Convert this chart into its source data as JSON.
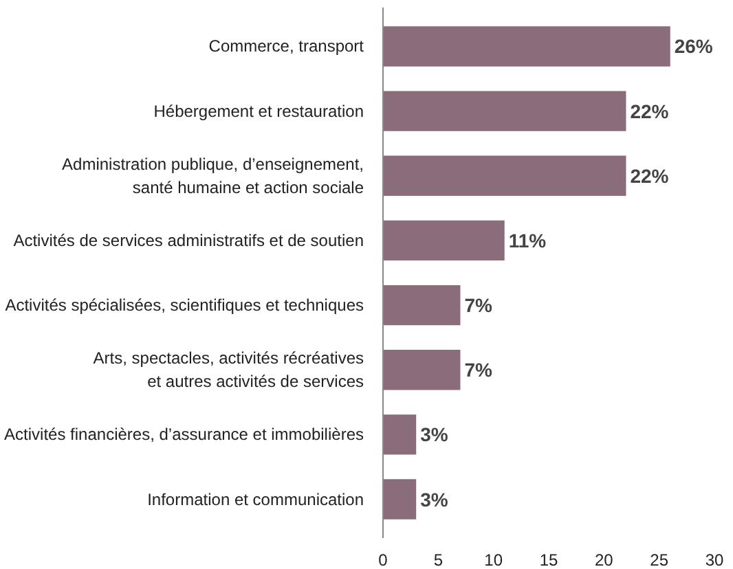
{
  "chart_data": {
    "type": "bar",
    "orientation": "horizontal",
    "categories": [
      "Commerce, transport",
      "Hébergement et restauration",
      "Administration publique, d’enseignement,\nsanté humaine et action sociale",
      "Activités de services administratifs et de soutien",
      "Activités spécialisées, scientifiques et techniques",
      "Arts, spectacles, activités récréatives\net autres activités de services",
      "Activités financières, d’assurance et immobilières",
      "Information et communication"
    ],
    "values": [
      26,
      22,
      22,
      11,
      7,
      7,
      3,
      3
    ],
    "value_labels": [
      "26%",
      "22%",
      "22%",
      "11%",
      "7%",
      "7%",
      "3%",
      "3%"
    ],
    "color": "#8a6c7b",
    "xlim": [
      0,
      30
    ],
    "xticks": [
      0,
      5,
      10,
      15,
      20,
      25,
      30
    ],
    "grid": false
  }
}
